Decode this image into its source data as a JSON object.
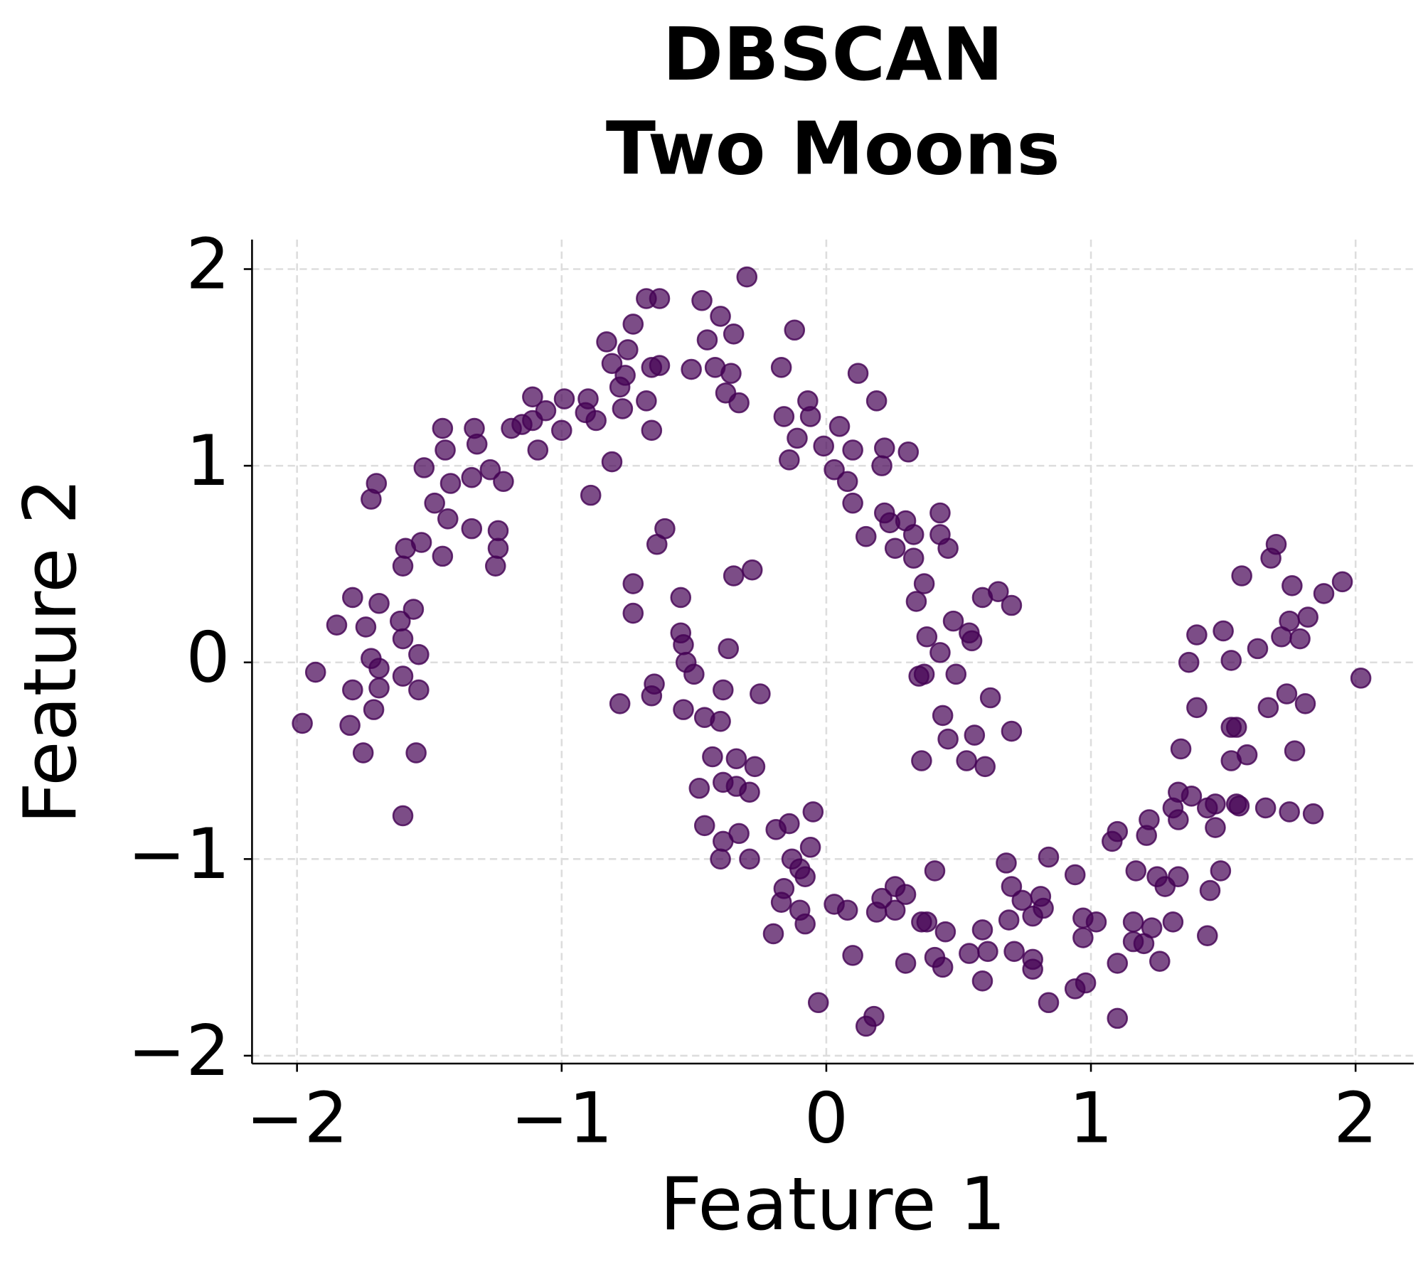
{
  "chart_data": {
    "type": "scatter",
    "title": [
      "DBSCAN",
      "Two Moons"
    ],
    "xlabel": "Feature 1",
    "ylabel": "Feature 2",
    "xlim": [
      -2.17,
      2.22
    ],
    "ylim": [
      -2.04,
      2.15
    ],
    "xticks": [
      {
        "value": -2,
        "label": "−2"
      },
      {
        "value": -1,
        "label": "−1"
      },
      0,
      1,
      2
    ],
    "yticks": [
      {
        "value": -2,
        "label": "−2"
      },
      {
        "value": -1,
        "label": "−1"
      },
      0,
      1,
      2
    ],
    "grid": true,
    "series": [
      {
        "color": "#440154",
        "x": [
          -1.98,
          -1.93,
          -1.85,
          -1.79,
          -1.79,
          -1.8,
          -1.75,
          -1.74,
          -1.72,
          -1.71,
          -1.7,
          -1.72,
          -1.69,
          -1.69,
          -1.69,
          -1.61,
          -1.6,
          -1.6,
          -1.6,
          -1.6,
          -1.59,
          -1.56,
          -1.54,
          -1.54,
          -1.55,
          -1.53,
          -1.52,
          -1.48,
          -1.45,
          -1.45,
          -1.44,
          -1.43,
          -1.42,
          -1.34,
          -1.34,
          -1.33,
          -1.32,
          -1.27,
          -1.25,
          -1.24,
          -1.24,
          -1.22,
          -1.19,
          -1.15,
          -1.11,
          -1.09,
          -1.11,
          -1.06,
          -1.0,
          -0.99,
          -0.9,
          -0.91,
          -0.87,
          -0.89,
          -0.81,
          -0.83,
          -0.81,
          -0.78,
          -0.77,
          -0.76,
          -0.75,
          -0.73,
          -0.68,
          -0.68,
          -0.66,
          -0.66,
          -0.63,
          -0.63,
          -0.51,
          -0.47,
          -0.45,
          -0.42,
          -0.4,
          -0.38,
          -0.36,
          -0.35,
          -0.33,
          -0.3,
          -0.17,
          -0.16,
          -0.14,
          -0.12,
          -0.11,
          -0.07,
          -0.06,
          -0.01,
          0.03,
          0.05,
          0.08,
          0.1,
          0.1,
          0.12,
          0.15,
          0.19,
          0.21,
          0.22,
          0.22,
          0.24,
          0.26,
          0.3,
          0.31,
          0.33,
          0.33,
          0.34,
          0.37,
          0.35,
          0.37,
          0.36,
          0.38,
          0.43,
          0.43,
          0.46,
          0.43,
          0.44,
          0.46,
          0.48,
          0.49,
          0.53,
          0.54,
          0.55,
          0.56,
          0.59,
          0.6,
          0.62,
          0.65,
          0.7,
          0.7,
          -0.61,
          -0.64,
          -0.73,
          -0.73,
          -0.78,
          -0.65,
          -0.66,
          -0.55,
          -0.55,
          -0.54,
          -0.53,
          -0.5,
          -0.54,
          -0.46,
          -0.4,
          -0.39,
          -0.37,
          -0.35,
          -0.28,
          -0.25,
          -0.43,
          -0.34,
          -0.27,
          -0.48,
          -0.39,
          -0.34,
          -0.29,
          -0.46,
          -0.39,
          -0.33,
          -0.4,
          -0.29,
          -0.19,
          -0.14,
          -0.05,
          -0.06,
          -0.13,
          -0.1,
          -0.08,
          -0.16,
          -0.17,
          -0.1,
          -0.08,
          -0.2,
          -0.03,
          0.03,
          0.08,
          0.1,
          0.15,
          0.18,
          0.19,
          0.21,
          0.26,
          0.26,
          0.3,
          0.3,
          0.36,
          0.38,
          0.41,
          0.41,
          0.44,
          0.45,
          0.54,
          0.59,
          0.59,
          0.61,
          0.68,
          0.69,
          0.7,
          0.71,
          0.74,
          0.78,
          0.78,
          0.78,
          0.81,
          0.82,
          0.84,
          0.84,
          0.94,
          0.94,
          0.97,
          0.97,
          0.98,
          1.02,
          1.08,
          1.1,
          1.1,
          1.1,
          1.16,
          1.16,
          1.17,
          1.2,
          1.21,
          1.22,
          1.23,
          1.25,
          1.26,
          1.28,
          1.31,
          1.31,
          1.33,
          1.33,
          1.33,
          1.34,
          1.38,
          1.37,
          1.4,
          1.4,
          1.44,
          1.45,
          1.44,
          1.47,
          1.47,
          1.49,
          1.5,
          1.53,
          1.53,
          1.55,
          1.53,
          1.55,
          1.56,
          1.57,
          1.59,
          1.63,
          1.66,
          1.67,
          1.68,
          1.7,
          1.72,
          1.74,
          1.75,
          1.75,
          1.76,
          1.77,
          1.79,
          1.81,
          1.82,
          1.84,
          1.88,
          1.95,
          2.02
        ],
        "y": [
          -0.31,
          -0.05,
          0.19,
          0.33,
          -0.14,
          -0.32,
          -0.46,
          0.18,
          0.02,
          -0.24,
          0.91,
          0.83,
          0.3,
          -0.03,
          -0.13,
          0.21,
          0.12,
          -0.07,
          -0.78,
          0.49,
          0.58,
          0.27,
          0.04,
          -0.14,
          -0.46,
          0.61,
          0.99,
          0.81,
          0.54,
          1.19,
          1.08,
          0.73,
          0.91,
          0.68,
          0.94,
          1.19,
          1.11,
          0.98,
          0.49,
          0.58,
          0.67,
          0.92,
          1.19,
          1.21,
          1.23,
          1.08,
          1.35,
          1.28,
          1.18,
          1.34,
          1.34,
          1.27,
          1.23,
          0.85,
          1.02,
          1.63,
          1.52,
          1.4,
          1.29,
          1.46,
          1.59,
          1.72,
          1.85,
          1.33,
          1.5,
          1.18,
          1.85,
          1.51,
          1.49,
          1.84,
          1.64,
          1.5,
          1.76,
          1.37,
          1.47,
          1.67,
          1.32,
          1.96,
          1.5,
          1.25,
          1.03,
          1.69,
          1.14,
          1.33,
          1.25,
          1.1,
          0.98,
          1.2,
          0.92,
          1.08,
          0.81,
          1.47,
          0.64,
          1.33,
          1.0,
          1.09,
          0.76,
          0.71,
          0.58,
          0.72,
          1.07,
          0.65,
          0.53,
          0.31,
          0.4,
          -0.07,
          -0.06,
          -0.5,
          0.13,
          0.76,
          0.65,
          0.58,
          0.05,
          -0.27,
          -0.39,
          0.21,
          -0.06,
          -0.5,
          0.15,
          0.11,
          -0.37,
          0.33,
          -0.53,
          -0.18,
          0.36,
          -0.35,
          0.29,
          0.68,
          0.6,
          0.4,
          0.25,
          -0.21,
          -0.11,
          -0.17,
          0.33,
          0.15,
          0.09,
          0.0,
          -0.06,
          -0.24,
          -0.28,
          -0.3,
          -0.14,
          0.07,
          0.44,
          0.47,
          -0.16,
          -0.48,
          -0.49,
          -0.53,
          -0.64,
          -0.61,
          -0.63,
          -0.66,
          -0.83,
          -0.91,
          -0.87,
          -1.0,
          -1.0,
          -0.85,
          -0.82,
          -0.76,
          -0.94,
          -1.0,
          -1.05,
          -1.09,
          -1.15,
          -1.22,
          -1.26,
          -1.33,
          -1.38,
          -1.73,
          -1.23,
          -1.26,
          -1.49,
          -1.85,
          -1.8,
          -1.27,
          -1.2,
          -1.14,
          -1.26,
          -1.18,
          -1.53,
          -1.32,
          -1.32,
          -1.06,
          -1.5,
          -1.55,
          -1.37,
          -1.48,
          -1.62,
          -1.36,
          -1.47,
          -1.02,
          -1.31,
          -1.14,
          -1.47,
          -1.21,
          -1.29,
          -1.51,
          -1.56,
          -1.19,
          -1.25,
          -1.73,
          -0.99,
          -1.08,
          -1.66,
          -1.3,
          -1.4,
          -1.63,
          -1.32,
          -0.91,
          -0.86,
          -1.53,
          -1.81,
          -1.32,
          -1.42,
          -1.06,
          -1.43,
          -0.88,
          -0.8,
          -1.35,
          -1.09,
          -1.52,
          -1.14,
          -1.32,
          -0.74,
          -0.66,
          -0.8,
          -1.09,
          -0.44,
          -0.68,
          0.0,
          -0.23,
          0.14,
          -1.39,
          -1.16,
          -0.74,
          -0.72,
          -0.84,
          -1.06,
          0.16,
          0.01,
          -0.33,
          -0.33,
          -0.5,
          -0.72,
          -0.73,
          0.44,
          -0.47,
          0.07,
          -0.74,
          -0.23,
          0.53,
          0.6,
          0.13,
          -0.16,
          0.21,
          -0.76,
          0.39,
          -0.45,
          0.12,
          -0.21,
          0.23,
          -0.77,
          0.35,
          0.41,
          -0.08
        ]
      }
    ]
  }
}
